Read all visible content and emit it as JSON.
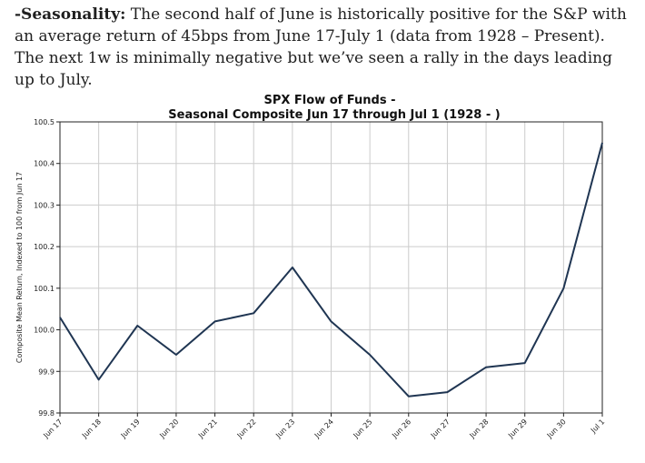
{
  "note": {
    "label": "-Seasonality:",
    "text": " The second half of June is historically positive for the S&P with an average return of 45bps from June 17-July 1 (data from 1928 – Present). The next 1w is minimally negative but we’ve seen a rally in the days leading up to July."
  },
  "chart_data": {
    "type": "line",
    "title": "SPX Flow of Funds -",
    "subtitle": "Seasonal Composite Jun 17 through Jul 1 (1928 - )",
    "xlabel": "",
    "ylabel": "Composite Mean Return, Indexed to 100 from Jun 17",
    "categories": [
      "Jun 17",
      "Jun 18",
      "Jun 19",
      "Jun 20",
      "Jun 21",
      "Jun 22",
      "Jun 23",
      "Jun 24",
      "Jun 25",
      "Jun 26",
      "Jun 27",
      "Jun 28",
      "Jun 29",
      "Jun 30",
      "Jul 1"
    ],
    "series": [
      {
        "name": "Seasonal Composite",
        "values": [
          100.03,
          99.88,
          100.01,
          99.94,
          100.02,
          100.04,
          100.15,
          100.02,
          99.94,
          99.84,
          99.85,
          99.91,
          99.92,
          100.1,
          100.45
        ]
      }
    ],
    "ylim": [
      99.8,
      100.5
    ],
    "yticks": [
      "99.8",
      "99.9",
      "100.0",
      "100.1",
      "100.2",
      "100.3",
      "100.4",
      "100.5"
    ],
    "grid": true,
    "line_color": "#1f3552",
    "grid_color": "#cccccc"
  }
}
